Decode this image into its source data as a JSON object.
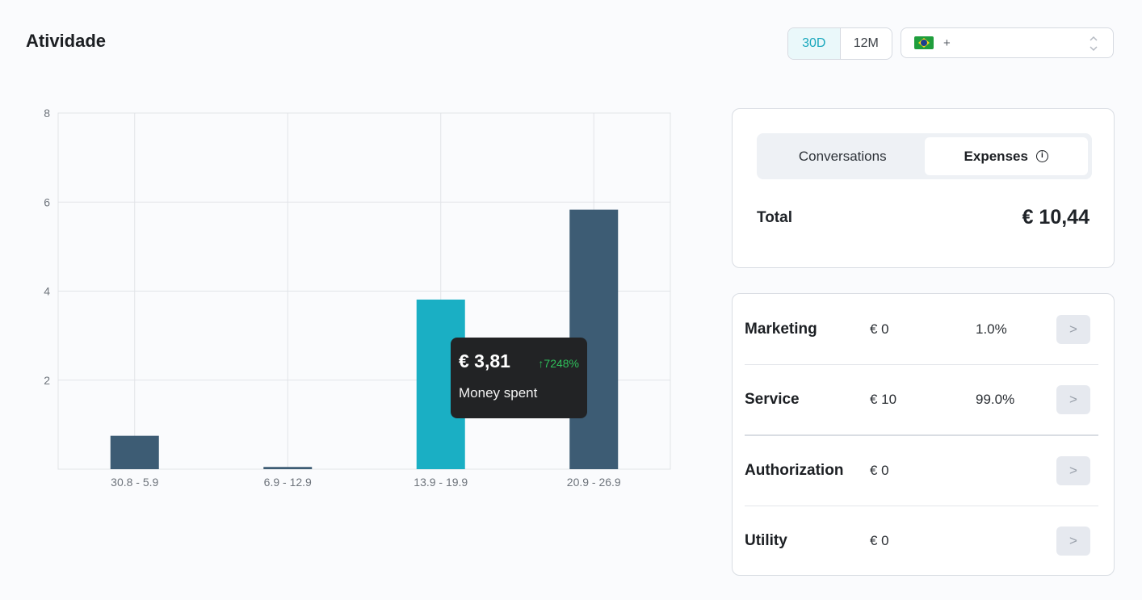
{
  "header": {
    "title": "Atividade",
    "range_options": [
      "30D",
      "12M"
    ],
    "selected_range": "30D",
    "country": {
      "flag": "brazil-flag-icon",
      "dial_code": "+"
    }
  },
  "chart_data": {
    "type": "bar",
    "categories": [
      "30.8 - 5.9",
      "6.9 - 12.9",
      "13.9 - 19.9",
      "20.9 - 26.9"
    ],
    "values": [
      0.75,
      0.05,
      3.81,
      5.83
    ],
    "highlighted_index": 2,
    "colors": {
      "bar": "#3d5c74",
      "highlight": "#1aafc4"
    },
    "ylim": [
      0,
      8
    ],
    "yticks": [
      2,
      4,
      6,
      8
    ],
    "grid": true,
    "title": "",
    "xlabel": "",
    "ylabel": ""
  },
  "tooltip": {
    "value": "€ 3,81",
    "change": "7248%",
    "label": "Money spent"
  },
  "summary": {
    "tabs": [
      "Conversations",
      "Expenses"
    ],
    "active_tab": "Expenses",
    "total_label": "Total",
    "total_value": "€ 10,44"
  },
  "categories": [
    {
      "name": "Marketing",
      "amount": "€ 0",
      "percent": "1.0%",
      "action": ">"
    },
    {
      "name": "Service",
      "amount": "€ 10",
      "percent": "99.0%",
      "action": ">"
    },
    {
      "name": "Authorization",
      "amount": "€ 0",
      "percent": "",
      "action": ">"
    },
    {
      "name": "Utility",
      "amount": "€ 0",
      "percent": "",
      "action": ">"
    }
  ]
}
